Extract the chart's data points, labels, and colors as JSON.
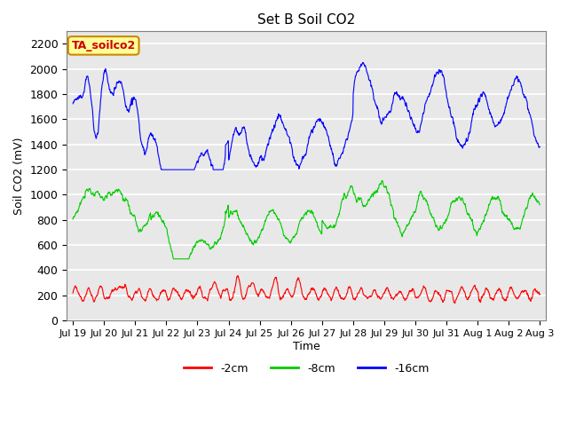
{
  "title": "Set B Soil CO2",
  "ylabel": "Soil CO2 (mV)",
  "xlabel": "Time",
  "ylim": [
    0,
    2300
  ],
  "yticks": [
    0,
    200,
    400,
    600,
    800,
    1000,
    1200,
    1400,
    1600,
    1800,
    2000,
    2200
  ],
  "xtick_labels": [
    "Jul 19",
    "Jul 20",
    "Jul 21",
    "Jul 22",
    "Jul 23",
    "Jul 24",
    "Jul 25",
    "Jul 26",
    "Jul 27",
    "Jul 28",
    "Jul 29",
    "Jul 30",
    "Jul 31",
    "Aug 1",
    "Aug 2",
    "Aug 3"
  ],
  "colors": {
    "2cm": "#ff0000",
    "8cm": "#00cc00",
    "16cm": "#0000ff"
  },
  "legend_labels": [
    "-2cm",
    "-8cm",
    "-16cm"
  ],
  "bg_color": "#e8e8e8",
  "annotation_text": "TA_soilco2",
  "annotation_bg": "#ffff99",
  "annotation_border": "#cc8800"
}
